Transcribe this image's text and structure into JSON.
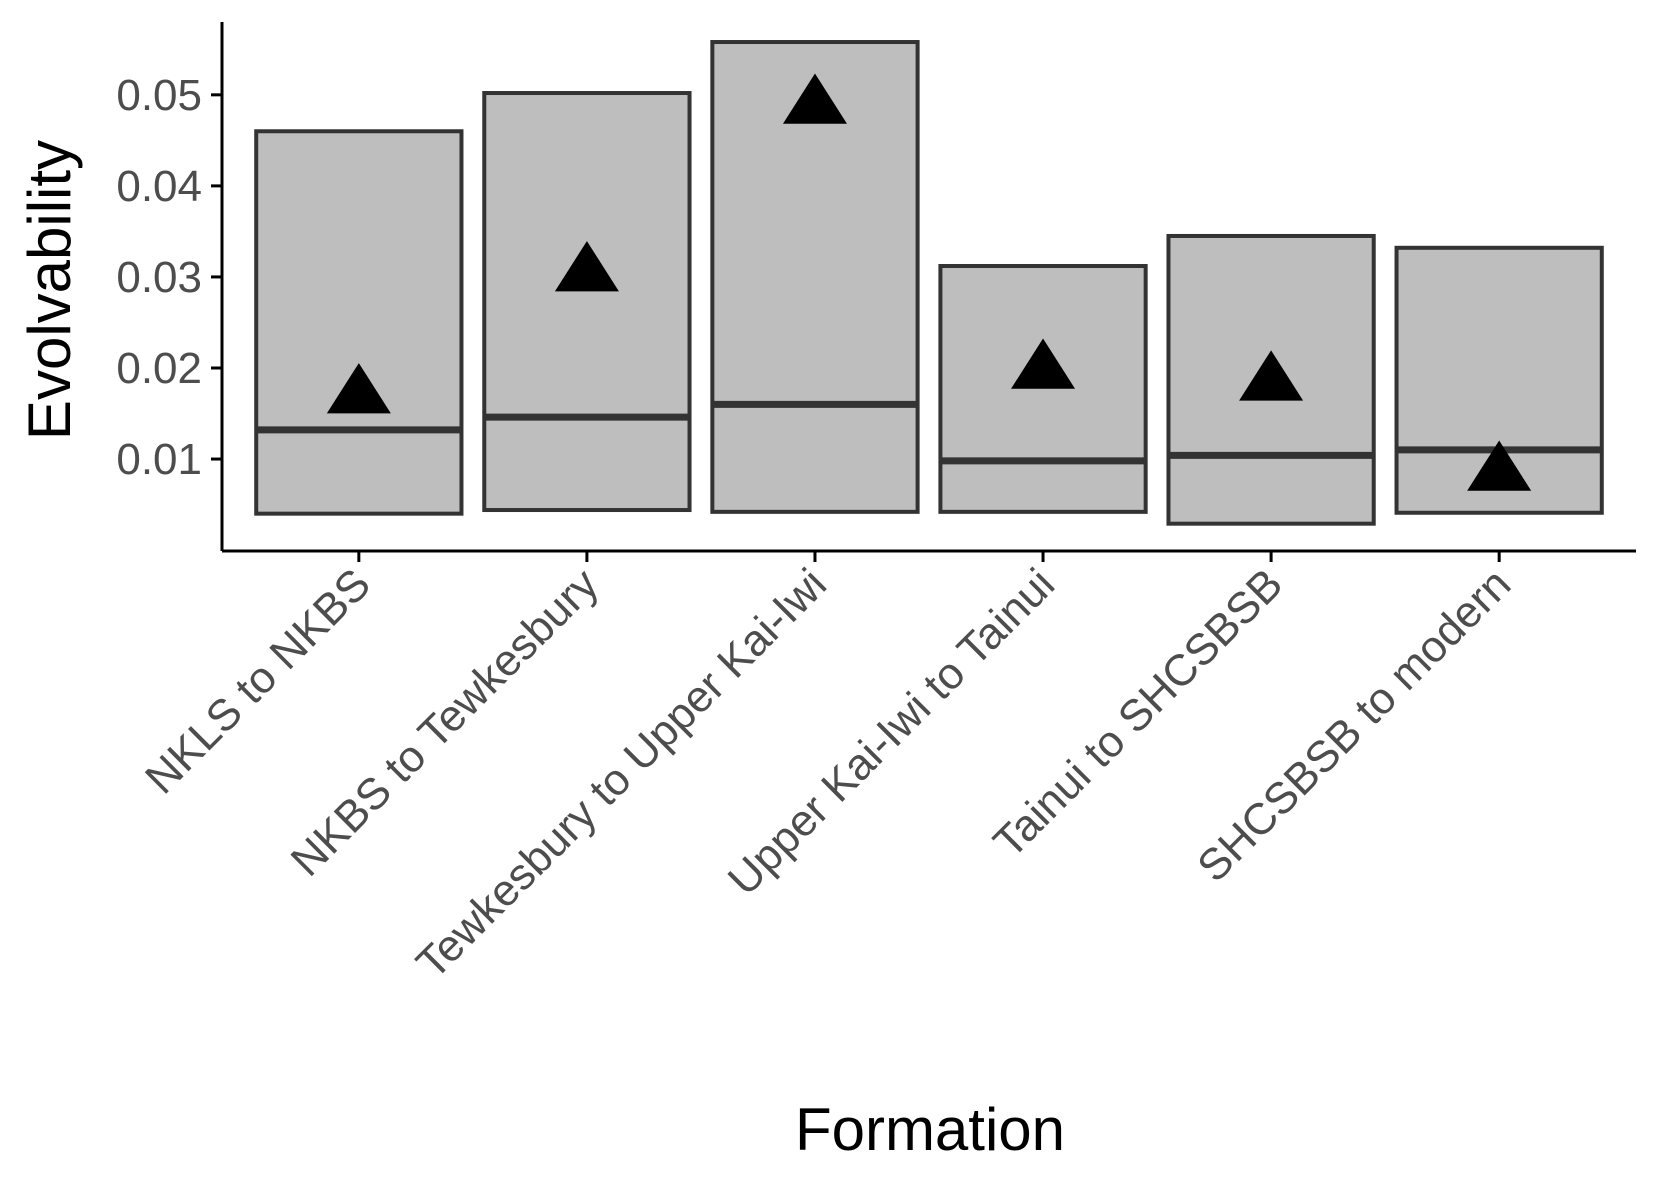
{
  "chart_data": {
    "type": "box",
    "xlabel": "Formation",
    "ylabel": "Evolvability",
    "y_ticks": [
      0.01,
      0.02,
      0.03,
      0.04,
      0.05
    ],
    "y_tick_labels": [
      "0.01",
      "0.02",
      "0.03",
      "0.04",
      "0.05"
    ],
    "ylim": [
      -0.0001,
      0.058
    ],
    "categories": [
      "NKLS to NKBS",
      "NKBS to Tewkesbury",
      "Tewkesbury to Upper Kai-Iwi",
      "Upper Kai-Iwi to Tainui",
      "Tainui to SHCSBSB",
      "SHCSBSB to modern"
    ],
    "boxes": [
      {
        "low": 0.004,
        "mid": 0.0132,
        "high": 0.046
      },
      {
        "low": 0.0044,
        "mid": 0.0146,
        "high": 0.0502
      },
      {
        "low": 0.0042,
        "mid": 0.016,
        "high": 0.0558
      },
      {
        "low": 0.0042,
        "mid": 0.0098,
        "high": 0.0312
      },
      {
        "low": 0.0029,
        "mid": 0.0104,
        "high": 0.0345
      },
      {
        "low": 0.0041,
        "mid": 0.011,
        "high": 0.0332
      }
    ],
    "points": [
      0.0172,
      0.0306,
      0.049,
      0.0199,
      0.0186,
      0.0087
    ],
    "point_shape": "triangle",
    "legend": "none",
    "grid": false,
    "colors": {
      "box_fill": "#bebebe",
      "box_stroke": "#333333",
      "point": "#000000",
      "axis": "#000000",
      "tick_text": "#4d4d4d"
    }
  }
}
